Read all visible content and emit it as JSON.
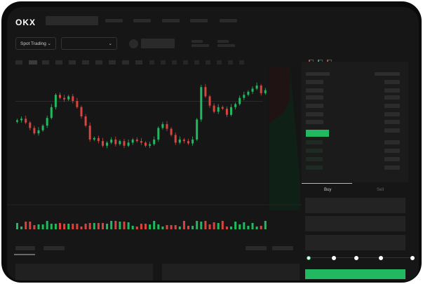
{
  "header": {
    "logo": "OKX"
  },
  "toolbar": {
    "market_select": "Spot Trading",
    "market_chevron": "⌄",
    "pair_chevron": "⌄"
  },
  "trade": {
    "tabs": [
      "Buy",
      "Sell"
    ],
    "leverage_steps": 5,
    "accent": "#22b85f",
    "down_color": "#d9443f"
  },
  "chart_data": {
    "type": "candlestick",
    "closes": [
      55,
      57,
      52,
      45,
      38,
      42,
      48,
      58,
      72,
      88,
      84,
      82,
      86,
      80,
      72,
      60,
      48,
      30,
      32,
      28,
      22,
      26,
      30,
      24,
      28,
      22,
      26,
      30,
      28,
      26,
      22,
      24,
      30,
      45,
      50,
      44,
      36,
      26,
      30,
      28,
      25,
      30,
      56,
      98,
      86,
      74,
      66,
      72,
      70,
      62,
      72,
      76,
      84,
      88,
      92,
      96,
      100,
      90,
      94
    ]
  }
}
